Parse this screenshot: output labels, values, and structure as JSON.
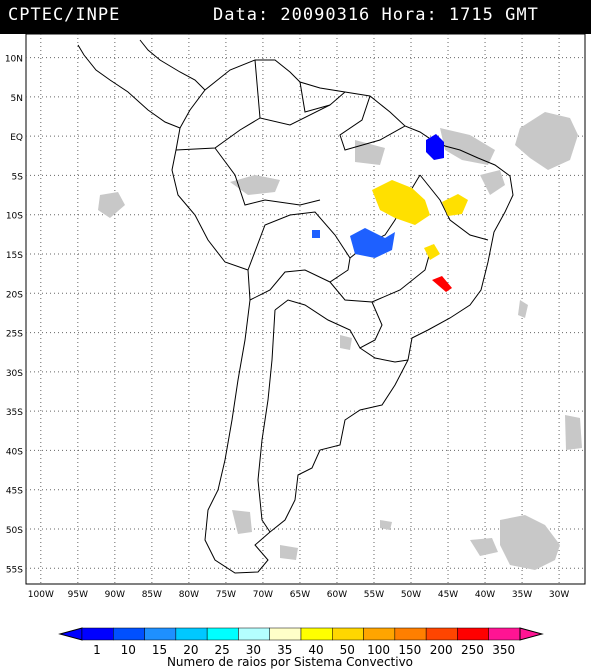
{
  "header": {
    "source": "CPTEC/INPE",
    "datetime": "Data: 20090316 Hora: 1715 GMT"
  },
  "map": {
    "lat_labels": [
      "10N",
      "5N",
      "EQ",
      "5S",
      "10S",
      "15S",
      "20S",
      "25S",
      "30S",
      "35S",
      "40S",
      "45S",
      "50S",
      "55S"
    ],
    "lat_values": [
      10,
      5,
      0,
      -5,
      -10,
      -15,
      -20,
      -25,
      -30,
      -35,
      -40,
      -45,
      -50,
      -55
    ],
    "lon_labels": [
      "100W",
      "95W",
      "90W",
      "85W",
      "80W",
      "75W",
      "70W",
      "65W",
      "60W",
      "55W",
      "50W",
      "45W",
      "40W",
      "35W",
      "30W"
    ],
    "lon_values": [
      -100,
      -95,
      -90,
      -85,
      -80,
      -75,
      -70,
      -65,
      -60,
      -55,
      -50,
      -45,
      -40,
      -35,
      -30
    ],
    "grid": true,
    "background_color": "#ffffff",
    "cloud_color": "#c8c8c8"
  },
  "legend": {
    "title": "Numero de raios por Sistema Convectivo",
    "ticks": [
      "1",
      "10",
      "15",
      "20",
      "25",
      "30",
      "35",
      "40",
      "50",
      "100",
      "150",
      "200",
      "250",
      "350"
    ],
    "colors": [
      "#0000ff",
      "#0050ff",
      "#1e90ff",
      "#00c8ff",
      "#00ffff",
      "#b4ffff",
      "#ffffc8",
      "#ffff00",
      "#ffd700",
      "#ffa500",
      "#ff7f00",
      "#ff4500",
      "#ff0000",
      "#ff1493"
    ]
  },
  "lightning_systems": [
    {
      "level": "1",
      "color": "#0000ff"
    },
    {
      "level": "15",
      "color": "#1e60ff"
    },
    {
      "level": "40",
      "color": "#ffe000"
    },
    {
      "level": "250",
      "color": "#ff0000"
    }
  ]
}
